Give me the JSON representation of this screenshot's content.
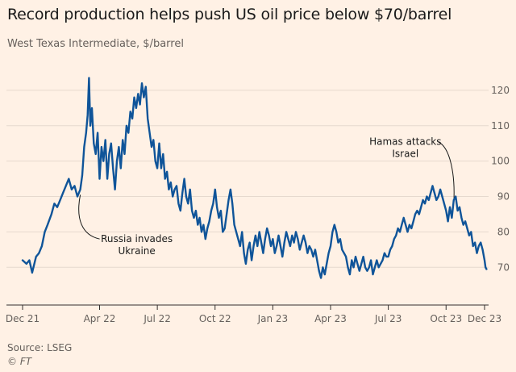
{
  "header": {
    "title": "Record production helps push US oil price below $70/barrel",
    "subtitle": "West Texas Intermediate, $/barrel"
  },
  "footer": {
    "source": "Source: LSEG",
    "copyright": "© FT"
  },
  "colors": {
    "background": "#fff1e5",
    "line": "#0f5499",
    "grid": "#e6d9ce"
  },
  "chart_data": {
    "type": "line",
    "title": "Record production helps push US oil price below $70/barrel",
    "subtitle": "West Texas Intermediate, $/barrel",
    "xlabel": "",
    "ylabel": "",
    "ylim": [
      63,
      125
    ],
    "yticks": [
      70,
      80,
      90,
      100,
      110,
      120
    ],
    "ytick_labels": [
      "70",
      "80",
      "90",
      "100",
      "110",
      "120"
    ],
    "xticks": [
      {
        "value": 0,
        "label": "Dec 21"
      },
      {
        "value": 4,
        "label": "Apr 22"
      },
      {
        "value": 7,
        "label": "Jul 22"
      },
      {
        "value": 10,
        "label": "Oct 22"
      },
      {
        "value": 13,
        "label": "Jan 23"
      },
      {
        "value": 16,
        "label": "Apr 23"
      },
      {
        "value": 19,
        "label": "Jul 23"
      },
      {
        "value": 22,
        "label": "Oct 23"
      },
      {
        "value": 24,
        "label": "Dec 23"
      }
    ],
    "series": [
      {
        "values": [
          [
            0.0,
            72
          ],
          [
            0.2,
            71
          ],
          [
            0.35,
            72
          ],
          [
            0.5,
            68.5
          ],
          [
            0.7,
            73
          ],
          [
            0.85,
            74
          ],
          [
            1.0,
            76
          ],
          [
            1.15,
            80
          ],
          [
            1.3,
            82
          ],
          [
            1.5,
            85
          ],
          [
            1.65,
            88
          ],
          [
            1.8,
            87
          ],
          [
            1.95,
            89
          ],
          [
            2.1,
            91
          ],
          [
            2.25,
            93
          ],
          [
            2.4,
            95
          ],
          [
            2.55,
            92
          ],
          [
            2.7,
            93
          ],
          [
            2.85,
            90
          ],
          [
            3.0,
            92
          ],
          [
            3.1,
            96
          ],
          [
            3.2,
            104
          ],
          [
            3.3,
            108
          ],
          [
            3.38,
            113
          ],
          [
            3.45,
            123.5
          ],
          [
            3.52,
            110
          ],
          [
            3.6,
            115
          ],
          [
            3.7,
            105
          ],
          [
            3.8,
            102
          ],
          [
            3.9,
            108
          ],
          [
            4.0,
            95
          ],
          [
            4.1,
            104
          ],
          [
            4.2,
            100
          ],
          [
            4.3,
            106
          ],
          [
            4.4,
            95
          ],
          [
            4.5,
            102
          ],
          [
            4.6,
            105
          ],
          [
            4.7,
            98
          ],
          [
            4.8,
            92
          ],
          [
            4.9,
            100
          ],
          [
            5.0,
            104
          ],
          [
            5.1,
            98
          ],
          [
            5.2,
            106
          ],
          [
            5.3,
            102
          ],
          [
            5.4,
            110
          ],
          [
            5.5,
            108
          ],
          [
            5.6,
            114
          ],
          [
            5.7,
            112
          ],
          [
            5.8,
            118
          ],
          [
            5.9,
            115
          ],
          [
            6.0,
            119
          ],
          [
            6.1,
            116
          ],
          [
            6.2,
            122
          ],
          [
            6.3,
            118
          ],
          [
            6.4,
            121
          ],
          [
            6.5,
            112
          ],
          [
            6.6,
            108
          ],
          [
            6.7,
            104
          ],
          [
            6.8,
            106
          ],
          [
            6.9,
            100
          ],
          [
            7.0,
            98
          ],
          [
            7.1,
            105
          ],
          [
            7.2,
            98
          ],
          [
            7.3,
            102
          ],
          [
            7.4,
            95
          ],
          [
            7.5,
            97
          ],
          [
            7.6,
            92
          ],
          [
            7.7,
            94
          ],
          [
            7.8,
            90
          ],
          [
            7.9,
            92
          ],
          [
            8.0,
            93
          ],
          [
            8.1,
            88
          ],
          [
            8.2,
            86
          ],
          [
            8.3,
            91
          ],
          [
            8.4,
            95
          ],
          [
            8.5,
            90
          ],
          [
            8.6,
            88
          ],
          [
            8.7,
            92
          ],
          [
            8.8,
            86
          ],
          [
            8.9,
            84
          ],
          [
            9.0,
            86
          ],
          [
            9.1,
            82
          ],
          [
            9.2,
            84
          ],
          [
            9.3,
            80
          ],
          [
            9.4,
            82
          ],
          [
            9.5,
            78
          ],
          [
            9.6,
            81
          ],
          [
            9.7,
            83
          ],
          [
            9.8,
            86
          ],
          [
            9.9,
            88
          ],
          [
            10.0,
            92
          ],
          [
            10.1,
            87
          ],
          [
            10.2,
            84
          ],
          [
            10.3,
            86
          ],
          [
            10.4,
            80
          ],
          [
            10.5,
            81
          ],
          [
            10.6,
            85
          ],
          [
            10.7,
            89
          ],
          [
            10.8,
            92
          ],
          [
            10.9,
            88
          ],
          [
            11.0,
            82
          ],
          [
            11.1,
            80
          ],
          [
            11.2,
            78
          ],
          [
            11.3,
            76
          ],
          [
            11.4,
            80
          ],
          [
            11.5,
            74
          ],
          [
            11.6,
            71
          ],
          [
            11.7,
            75
          ],
          [
            11.8,
            77
          ],
          [
            11.9,
            72
          ],
          [
            12.0,
            76
          ],
          [
            12.1,
            79
          ],
          [
            12.2,
            76
          ],
          [
            12.3,
            80
          ],
          [
            12.4,
            77
          ],
          [
            12.5,
            74
          ],
          [
            12.6,
            78
          ],
          [
            12.7,
            81
          ],
          [
            12.8,
            79
          ],
          [
            12.9,
            76
          ],
          [
            13.0,
            78
          ],
          [
            13.1,
            74
          ],
          [
            13.2,
            76
          ],
          [
            13.3,
            79
          ],
          [
            13.4,
            76
          ],
          [
            13.5,
            73
          ],
          [
            13.6,
            77
          ],
          [
            13.7,
            80
          ],
          [
            13.8,
            78
          ],
          [
            13.9,
            76
          ],
          [
            14.0,
            79
          ],
          [
            14.1,
            77
          ],
          [
            14.2,
            80
          ],
          [
            14.3,
            78
          ],
          [
            14.4,
            75
          ],
          [
            14.5,
            77
          ],
          [
            14.6,
            79
          ],
          [
            14.7,
            77
          ],
          [
            14.8,
            74
          ],
          [
            14.9,
            76
          ],
          [
            15.0,
            75
          ],
          [
            15.1,
            73
          ],
          [
            15.2,
            75
          ],
          [
            15.3,
            72
          ],
          [
            15.4,
            69
          ],
          [
            15.5,
            67
          ],
          [
            15.6,
            70
          ],
          [
            15.7,
            68
          ],
          [
            15.8,
            71
          ],
          [
            15.9,
            74
          ],
          [
            16.0,
            76
          ],
          [
            16.1,
            80
          ],
          [
            16.2,
            82
          ],
          [
            16.3,
            80
          ],
          [
            16.4,
            77
          ],
          [
            16.5,
            78
          ],
          [
            16.6,
            75
          ],
          [
            16.7,
            74
          ],
          [
            16.8,
            73
          ],
          [
            16.9,
            70
          ],
          [
            17.0,
            68
          ],
          [
            17.1,
            72
          ],
          [
            17.2,
            70
          ],
          [
            17.3,
            73
          ],
          [
            17.4,
            71
          ],
          [
            17.5,
            69
          ],
          [
            17.6,
            71
          ],
          [
            17.7,
            73
          ],
          [
            17.8,
            70
          ],
          [
            17.9,
            69
          ],
          [
            18.0,
            70
          ],
          [
            18.1,
            72
          ],
          [
            18.2,
            68
          ],
          [
            18.3,
            70
          ],
          [
            18.4,
            72
          ],
          [
            18.5,
            70
          ],
          [
            18.6,
            71
          ],
          [
            18.7,
            72
          ],
          [
            18.8,
            74
          ],
          [
            18.9,
            73
          ],
          [
            19.0,
            73
          ],
          [
            19.1,
            75
          ],
          [
            19.2,
            76
          ],
          [
            19.3,
            78
          ],
          [
            19.4,
            79
          ],
          [
            19.5,
            81
          ],
          [
            19.6,
            80
          ],
          [
            19.7,
            82
          ],
          [
            19.8,
            84
          ],
          [
            19.9,
            82
          ],
          [
            20.0,
            80
          ],
          [
            20.1,
            82
          ],
          [
            20.2,
            81
          ],
          [
            20.3,
            83
          ],
          [
            20.4,
            85
          ],
          [
            20.5,
            86
          ],
          [
            20.6,
            85
          ],
          [
            20.7,
            87
          ],
          [
            20.8,
            89
          ],
          [
            20.9,
            88
          ],
          [
            21.0,
            90
          ],
          [
            21.1,
            89
          ],
          [
            21.2,
            91
          ],
          [
            21.3,
            93
          ],
          [
            21.4,
            91
          ],
          [
            21.5,
            89
          ],
          [
            21.6,
            90
          ],
          [
            21.7,
            92
          ],
          [
            21.8,
            90
          ],
          [
            21.9,
            88
          ],
          [
            22.0,
            86
          ],
          [
            22.1,
            83
          ],
          [
            22.2,
            87
          ],
          [
            22.3,
            84
          ],
          [
            22.4,
            89
          ],
          [
            22.5,
            90
          ],
          [
            22.6,
            86
          ],
          [
            22.7,
            87
          ],
          [
            22.8,
            84
          ],
          [
            22.9,
            82
          ],
          [
            23.0,
            83
          ],
          [
            23.1,
            81
          ],
          [
            23.2,
            79
          ],
          [
            23.3,
            80
          ],
          [
            23.4,
            76
          ],
          [
            23.5,
            77
          ],
          [
            23.6,
            74
          ],
          [
            23.7,
            76
          ],
          [
            23.8,
            77
          ],
          [
            23.9,
            75
          ],
          [
            24.0,
            72
          ],
          [
            24.05,
            70
          ],
          [
            24.1,
            69.5
          ]
        ]
      }
    ],
    "annotations": [
      {
        "lines": [
          "Russia invades",
          "Ukraine"
        ],
        "x": 3.0,
        "y": 90.5
      },
      {
        "lines": [
          "Hamas attacks",
          "Israel"
        ],
        "x": 22.4,
        "y": 88
      }
    ]
  }
}
